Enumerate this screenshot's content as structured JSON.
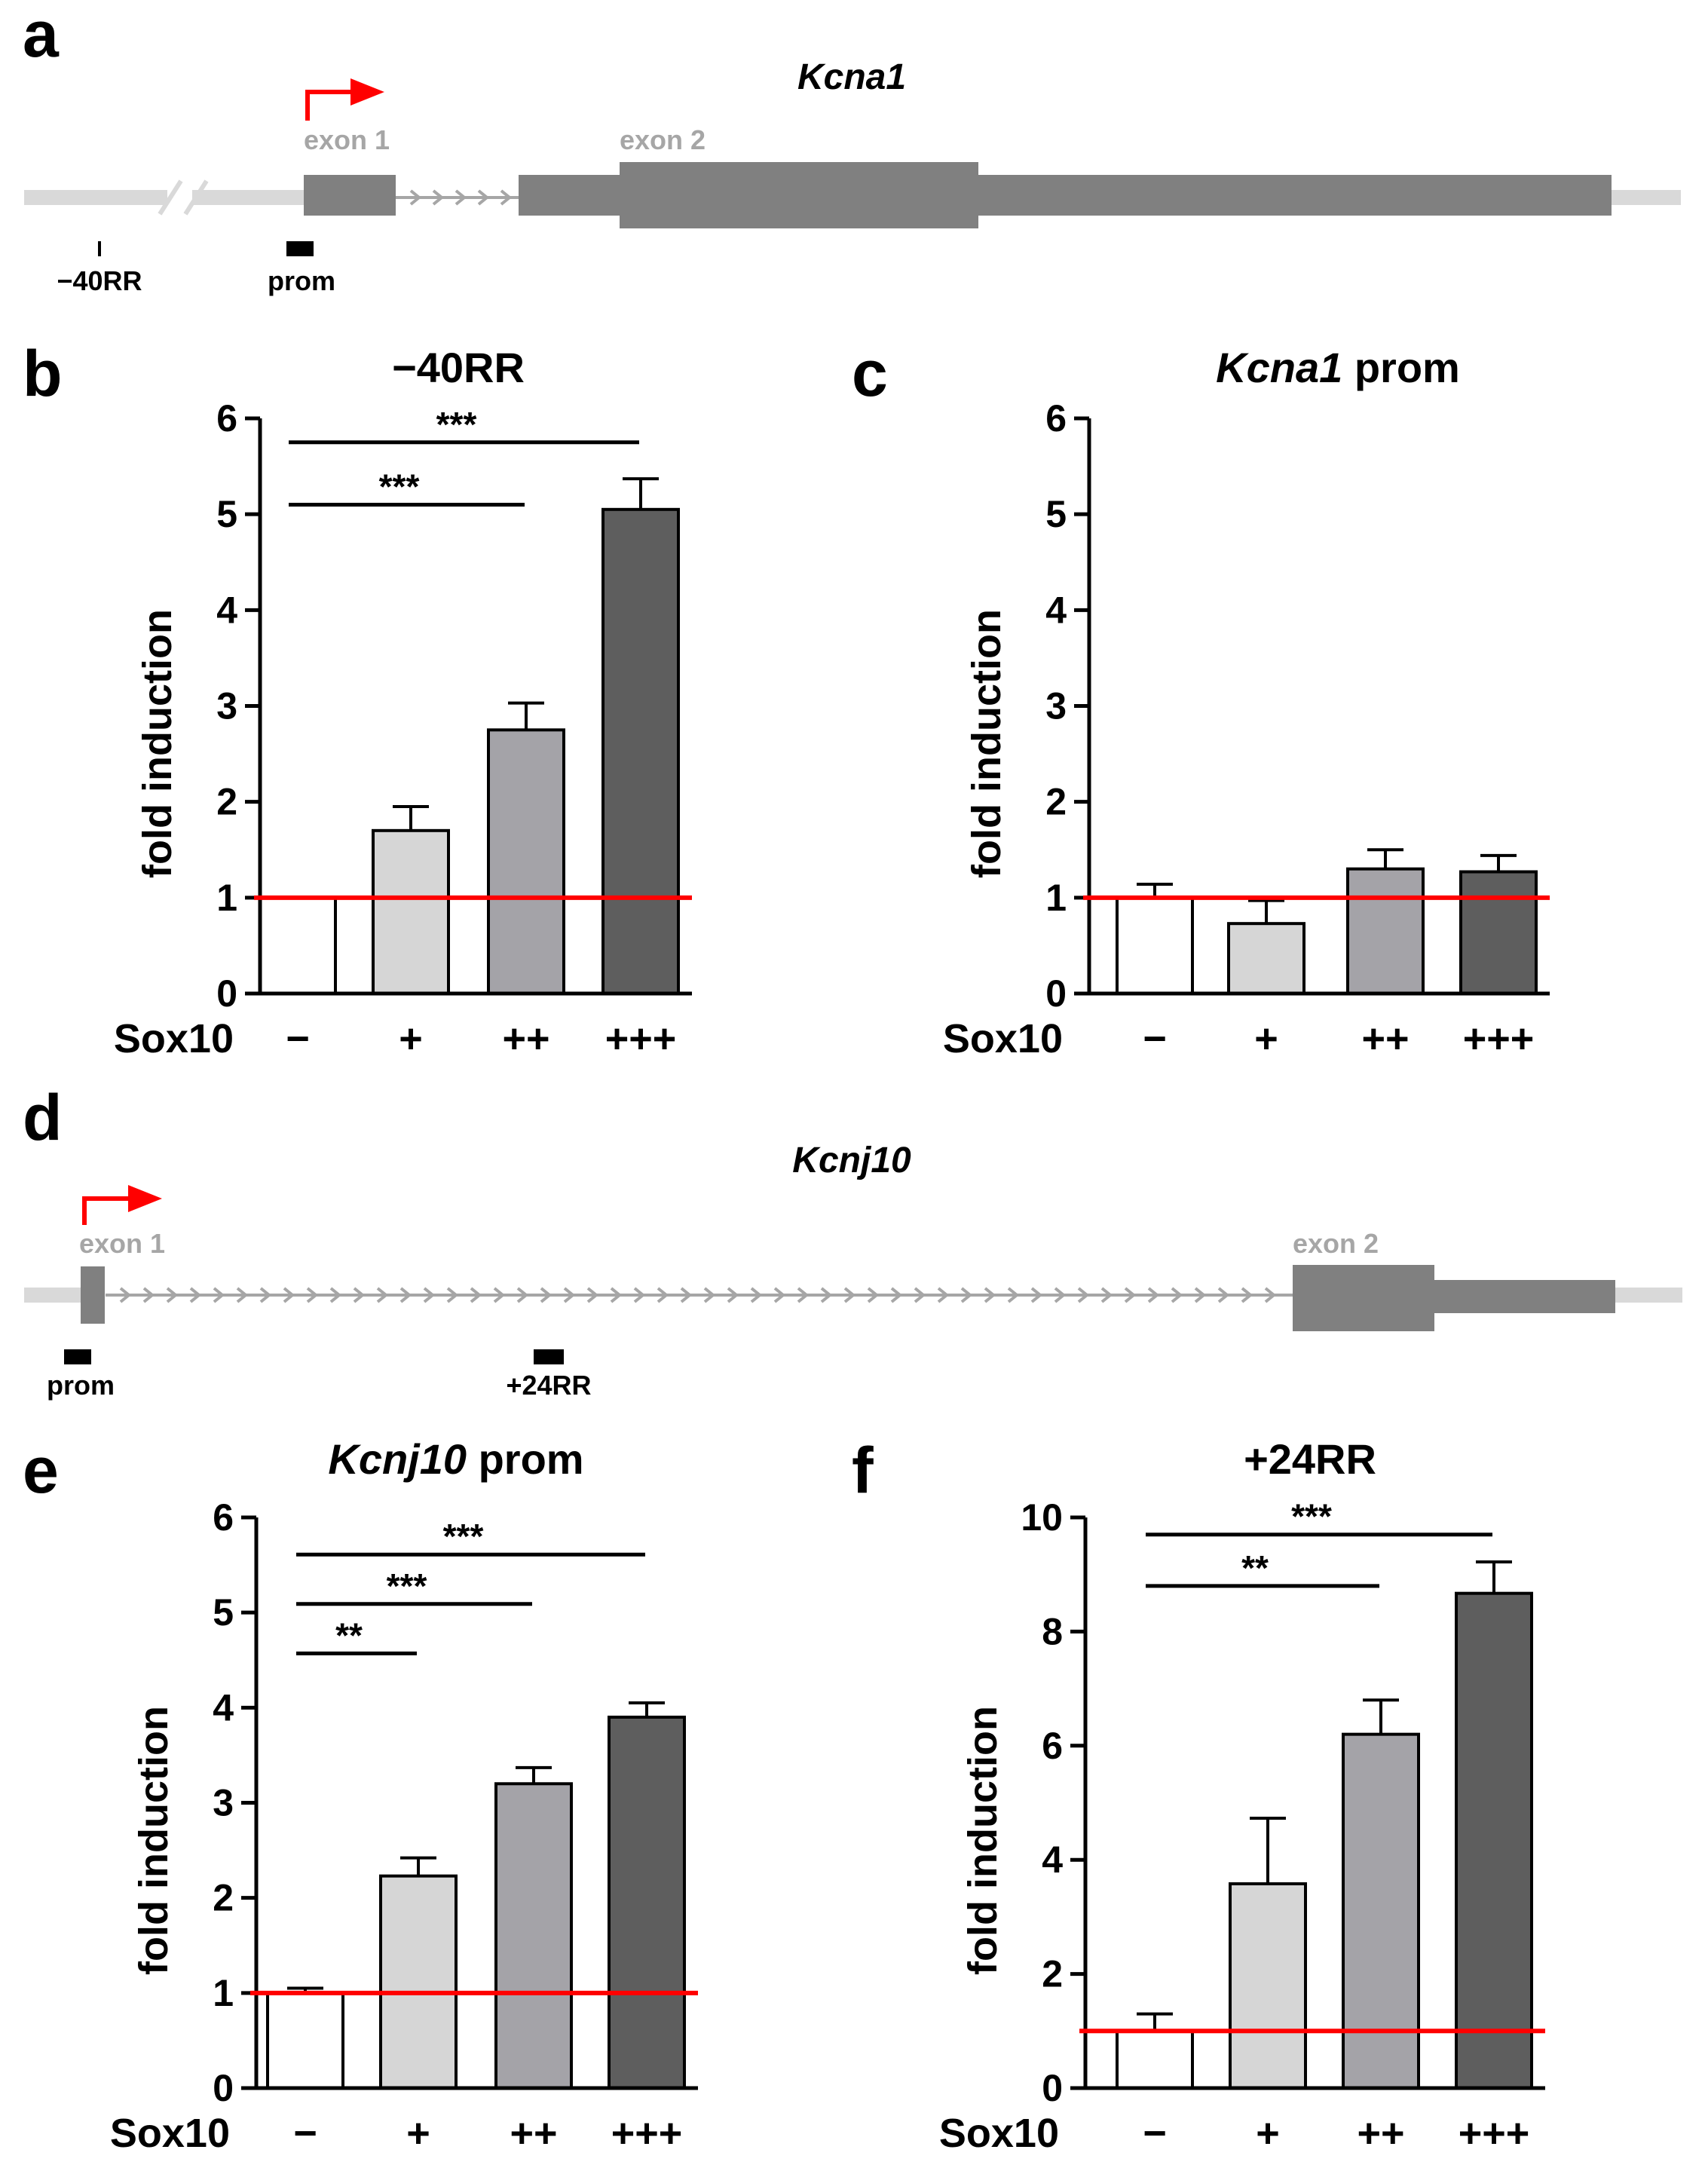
{
  "colors": {
    "axis": "#000000",
    "baseline": "#ff0000",
    "arrow": "#ff0000",
    "line": "#d9d9d9",
    "exon": "#808080",
    "region_box": "#000000",
    "bar_fills": [
      "#ffffff",
      "#d6d6d6",
      "#a4a3a8",
      "#5e5e5e"
    ]
  },
  "panel_a": {
    "panel_label": "a",
    "gene": "Kcna1",
    "exon1": "exon 1",
    "exon2": "exon 2",
    "regions": [
      "−40RR",
      "prom"
    ]
  },
  "panel_d": {
    "panel_label": "d",
    "gene": "Kcnj10",
    "exon1": "exon 1",
    "exon2": "exon 2",
    "regions": [
      "prom",
      "+24RR"
    ]
  },
  "chart_data": [
    {
      "panel_label": "b",
      "type": "bar",
      "title": "−40RR",
      "title_italic_part": "",
      "xlabel": "Sox10",
      "ylabel": "fold induction",
      "categories": [
        "−",
        "+",
        "++",
        "+++"
      ],
      "values": [
        1.0,
        1.7,
        2.75,
        5.05
      ],
      "errors": [
        0,
        0.25,
        0.28,
        0.32
      ],
      "ylim": [
        0,
        6
      ],
      "yticks": [
        0,
        1,
        2,
        3,
        4,
        5,
        6
      ],
      "baseline": 1,
      "significance": [
        {
          "from": 0,
          "to": 2,
          "label": "***",
          "y": 5.1
        },
        {
          "from": 0,
          "to": 3,
          "label": "***",
          "y": 5.75
        }
      ]
    },
    {
      "panel_label": "c",
      "type": "bar",
      "title": " prom",
      "title_italic_part": "Kcna1",
      "xlabel": "Sox10",
      "ylabel": "fold induction",
      "categories": [
        "−",
        "+",
        "++",
        "+++"
      ],
      "values": [
        1.0,
        0.73,
        1.3,
        1.27
      ],
      "errors": [
        0.14,
        0.24,
        0.2,
        0.17
      ],
      "ylim": [
        0,
        6
      ],
      "yticks": [
        0,
        1,
        2,
        3,
        4,
        5,
        6
      ],
      "baseline": 1,
      "significance": []
    },
    {
      "panel_label": "e",
      "type": "bar",
      "title": " prom",
      "title_italic_part": "Kcnj10",
      "xlabel": "Sox10",
      "ylabel": "fold induction",
      "categories": [
        "−",
        "+",
        "++",
        "+++"
      ],
      "values": [
        1.0,
        2.23,
        3.2,
        3.9
      ],
      "errors": [
        0.05,
        0.19,
        0.17,
        0.15
      ],
      "ylim": [
        0,
        6
      ],
      "yticks": [
        0,
        1,
        2,
        3,
        4,
        5,
        6
      ],
      "baseline": 1,
      "significance": [
        {
          "from": 0,
          "to": 1,
          "label": "**",
          "y": 4.57
        },
        {
          "from": 0,
          "to": 2,
          "label": "***",
          "y": 5.09
        },
        {
          "from": 0,
          "to": 3,
          "label": "***",
          "y": 5.61
        }
      ]
    },
    {
      "panel_label": "f",
      "type": "bar",
      "title": "+24RR",
      "title_italic_part": "",
      "xlabel": "Sox10",
      "ylabel": "fold induction",
      "categories": [
        "−",
        "+",
        "++",
        "+++"
      ],
      "values": [
        1.0,
        3.58,
        6.2,
        8.67
      ],
      "errors": [
        0.3,
        1.15,
        0.6,
        0.55
      ],
      "ylim": [
        0,
        10
      ],
      "yticks": [
        0,
        2,
        4,
        6,
        8,
        10
      ],
      "baseline": 1,
      "significance": [
        {
          "from": 0,
          "to": 2,
          "label": "**",
          "y": 8.8
        },
        {
          "from": 0,
          "to": 3,
          "label": "***",
          "y": 9.7
        }
      ]
    }
  ]
}
